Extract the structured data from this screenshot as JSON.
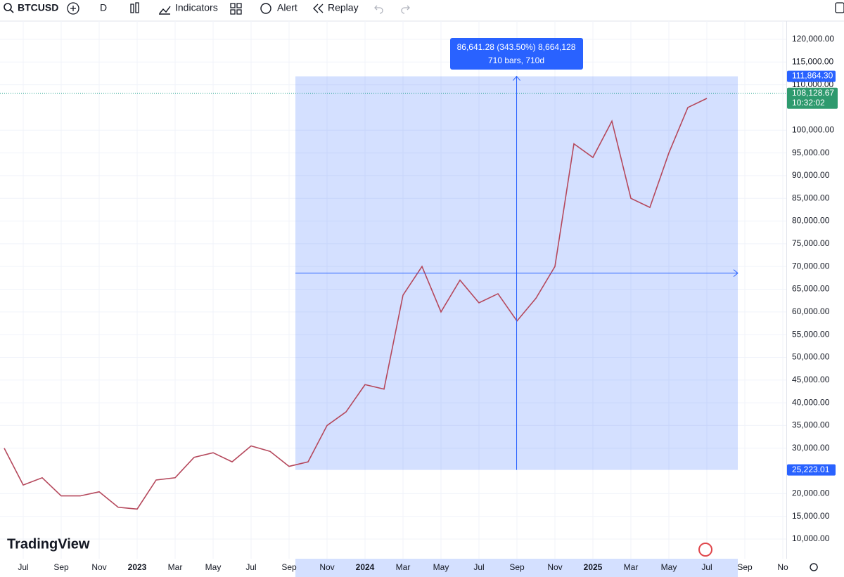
{
  "toolbar": {
    "symbol": "BTCUSD",
    "interval": "D",
    "indicators": "Indicators",
    "alert": "Alert",
    "replay": "Replay"
  },
  "logo": "TradingView",
  "chart_data": {
    "type": "line",
    "color": "#b5485c",
    "x": [
      "2022-06",
      "2022-07",
      "2022-08",
      "2022-09",
      "2022-10",
      "2022-11",
      "2022-12",
      "2023-01",
      "2023-02",
      "2023-03",
      "2023-04",
      "2023-05",
      "2023-06",
      "2023-07",
      "2023-08",
      "2023-09",
      "2023-10",
      "2023-11",
      "2023-12",
      "2024-01",
      "2024-02",
      "2024-03",
      "2024-04",
      "2024-05",
      "2024-06",
      "2024-07",
      "2024-08",
      "2024-09",
      "2024-10",
      "2024-11",
      "2024-12",
      "2025-01",
      "2025-02",
      "2025-03",
      "2025-04",
      "2025-05",
      "2025-06",
      "2025-07"
    ],
    "values": [
      30000,
      21900,
      23500,
      19500,
      19500,
      20400,
      17000,
      16600,
      23000,
      23500,
      28000,
      29000,
      27000,
      30500,
      29300,
      26000,
      27000,
      35000,
      38000,
      44000,
      43000,
      63700,
      70000,
      60000,
      67000,
      62000,
      64000,
      58000,
      63000,
      70000,
      97000,
      94000,
      102000,
      85000,
      83000,
      95000,
      105000,
      107000
    ],
    "ylim": [
      5670,
      124020
    ],
    "yticks": [
      {
        "value": 10000,
        "label": "10,000.00"
      },
      {
        "value": 15000,
        "label": "15,000.00"
      },
      {
        "value": 20000,
        "label": "20,000.00"
      },
      {
        "value": 30000,
        "label": "30,000.00"
      },
      {
        "value": 35000,
        "label": "35,000.00"
      },
      {
        "value": 40000,
        "label": "40,000.00"
      },
      {
        "value": 45000,
        "label": "45,000.00"
      },
      {
        "value": 50000,
        "label": "50,000.00"
      },
      {
        "value": 55000,
        "label": "55,000.00"
      },
      {
        "value": 60000,
        "label": "60,000.00"
      },
      {
        "value": 65000,
        "label": "65,000.00"
      },
      {
        "value": 70000,
        "label": "70,000.00"
      },
      {
        "value": 75000,
        "label": "75,000.00"
      },
      {
        "value": 80000,
        "label": "80,000.00"
      },
      {
        "value": 85000,
        "label": "85,000.00"
      },
      {
        "value": 90000,
        "label": "90,000.00"
      },
      {
        "value": 95000,
        "label": "95,000.00"
      },
      {
        "value": 100000,
        "label": "100,000.00"
      },
      {
        "value": 110000,
        "label": "110,000.00"
      },
      {
        "value": 115000,
        "label": "115,000.00"
      },
      {
        "value": 120000,
        "label": "120,000.00"
      }
    ],
    "xticks": [
      {
        "value": "2022-07",
        "label": "Jul"
      },
      {
        "value": "2022-09",
        "label": "Sep"
      },
      {
        "value": "2022-11",
        "label": "Nov"
      },
      {
        "value": "2023-01",
        "label": "2023"
      },
      {
        "value": "2023-03",
        "label": "Mar"
      },
      {
        "value": "2023-05",
        "label": "May"
      },
      {
        "value": "2023-07",
        "label": "Jul"
      },
      {
        "value": "2023-09",
        "label": "Sep"
      },
      {
        "value": "2023-11",
        "label": "Nov"
      },
      {
        "value": "2024-01",
        "label": "2024"
      },
      {
        "value": "2024-03",
        "label": "Mar"
      },
      {
        "value": "2024-05",
        "label": "May"
      },
      {
        "value": "2024-07",
        "label": "Jul"
      },
      {
        "value": "2024-09",
        "label": "Sep"
      },
      {
        "value": "2024-11",
        "label": "Nov"
      },
      {
        "value": "2025-01",
        "label": "2025"
      },
      {
        "value": "2025-03",
        "label": "Mar"
      },
      {
        "value": "2025-05",
        "label": "May"
      },
      {
        "value": "2025-07",
        "label": "Jul"
      },
      {
        "value": "2025-09",
        "label": "Sep"
      },
      {
        "value": "2025-11",
        "label": "No"
      }
    ],
    "grid": true,
    "measure": {
      "high": {
        "value": 111864.3,
        "label": "111,864.30"
      },
      "low": {
        "value": 25223.01,
        "label": "25,223.01"
      },
      "tooltip": [
        "86,641.28 (343.50%) 8,664,128",
        "710 bars, 710d"
      ]
    },
    "last_price": {
      "value": 108128.67,
      "label": "108,128.67"
    },
    "countdown": "10:32:02"
  }
}
